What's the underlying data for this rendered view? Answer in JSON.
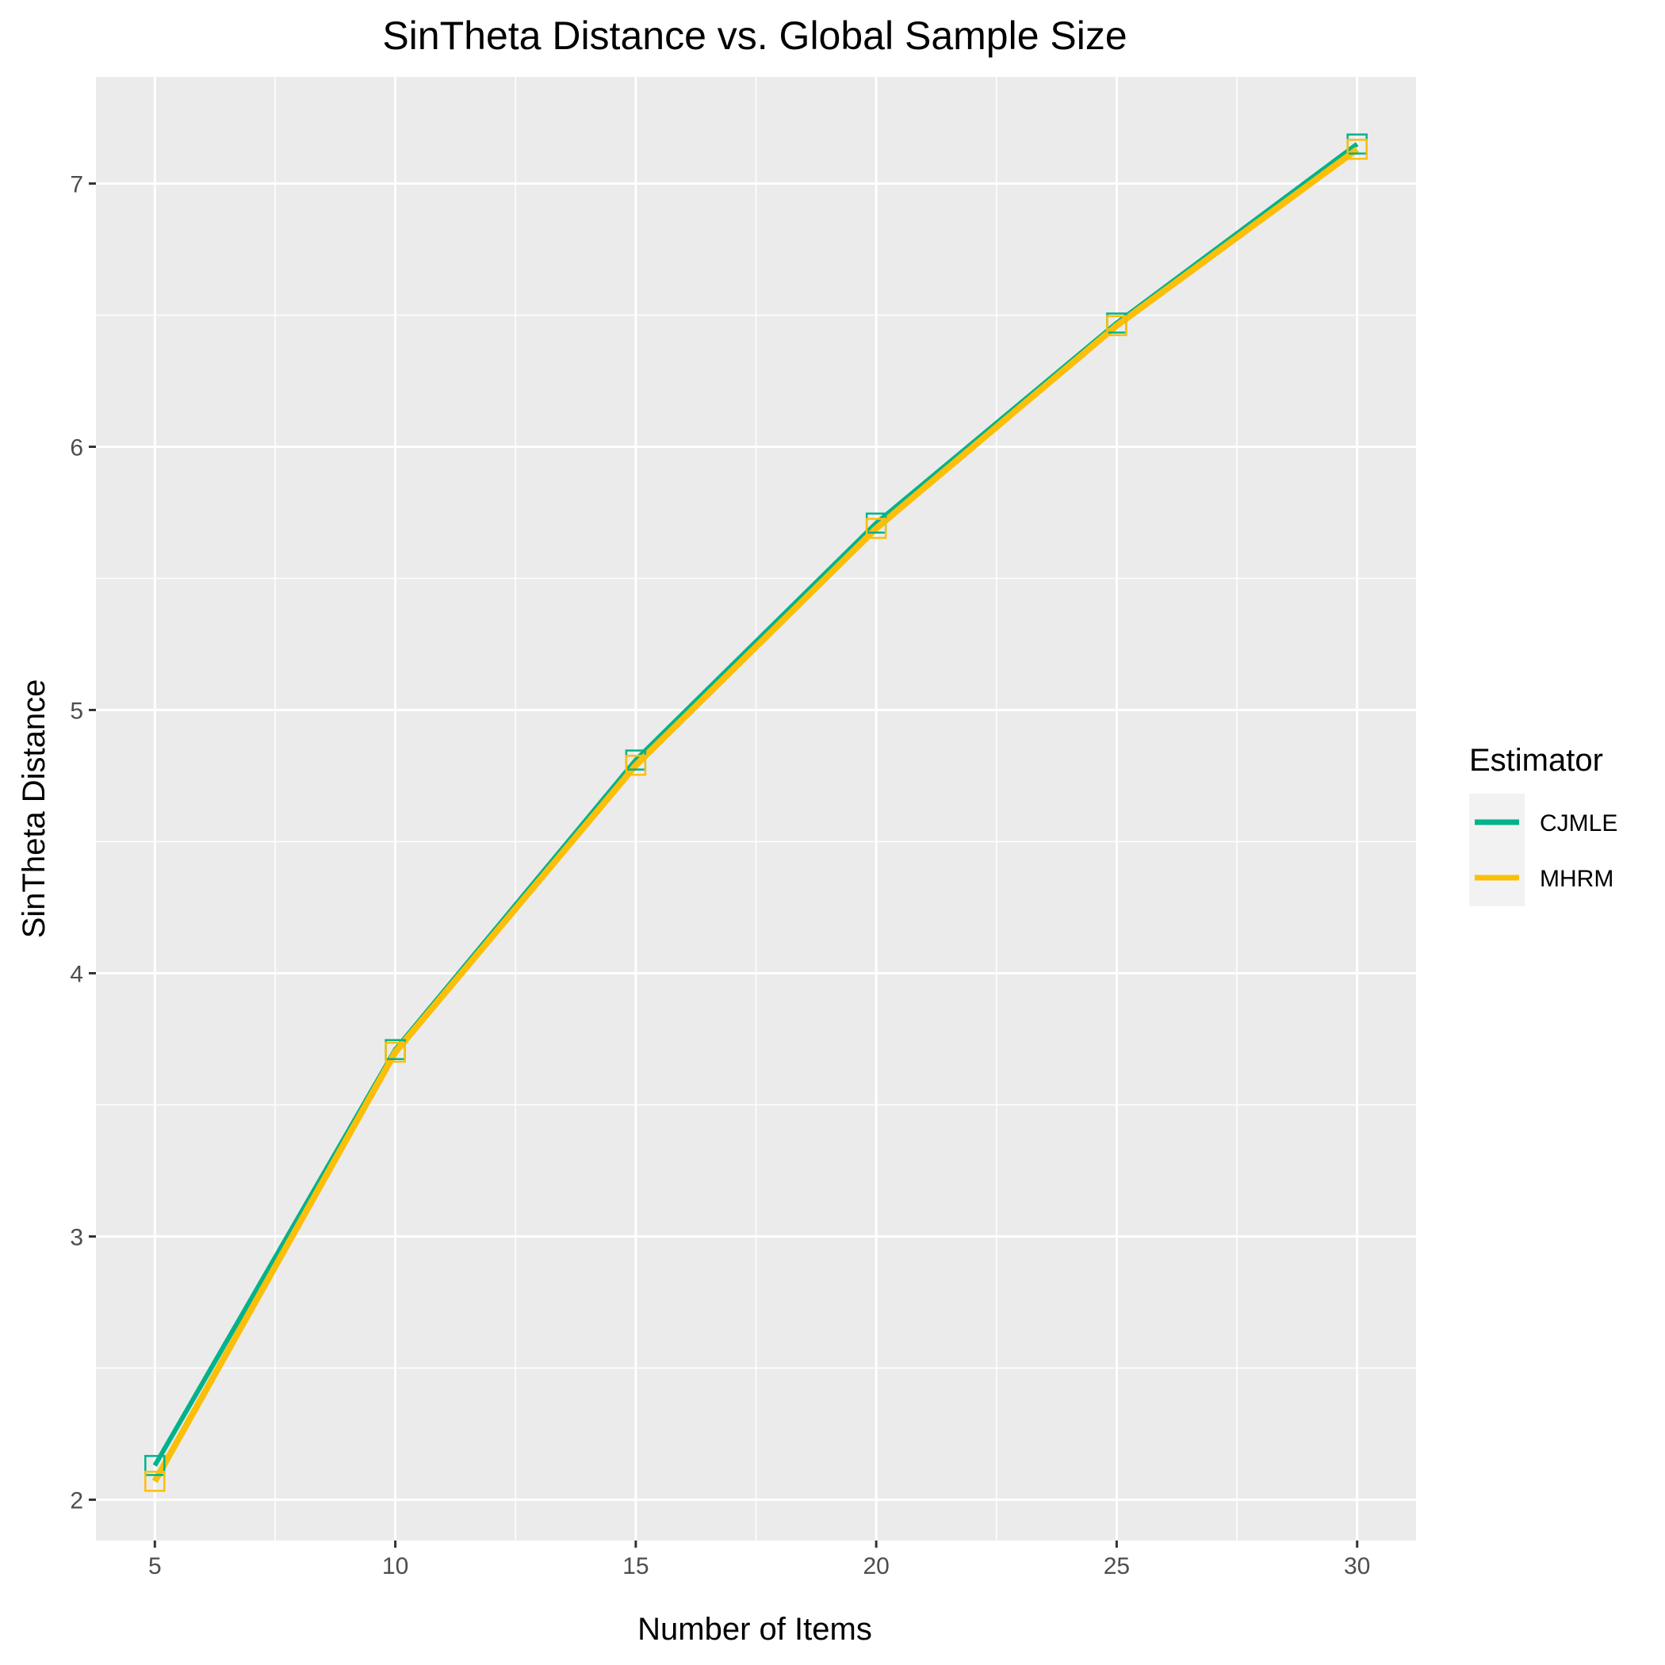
{
  "chart_data": {
    "type": "line",
    "title": "SinTheta Distance vs. Global Sample Size",
    "xlabel": "Number of Items",
    "ylabel": "SinTheta Distance",
    "x": [
      5,
      10,
      15,
      20,
      25,
      30
    ],
    "xlim": [
      3.775,
      31.225
    ],
    "ylim": [
      1.845,
      7.405
    ],
    "x_ticks": [
      5,
      10,
      15,
      20,
      25,
      30
    ],
    "y_ticks": [
      2,
      3,
      4,
      5,
      6,
      7
    ],
    "grid": true,
    "legend_position": "right",
    "legend_title": "Estimator",
    "series": [
      {
        "name": "CJMLE",
        "color": "#00b38a",
        "values": [
          2.13,
          3.71,
          4.81,
          5.71,
          6.47,
          7.15
        ]
      },
      {
        "name": "MHRM",
        "color": "#fbbf0a",
        "values": [
          2.07,
          3.7,
          4.79,
          5.69,
          6.46,
          7.13
        ]
      }
    ]
  }
}
